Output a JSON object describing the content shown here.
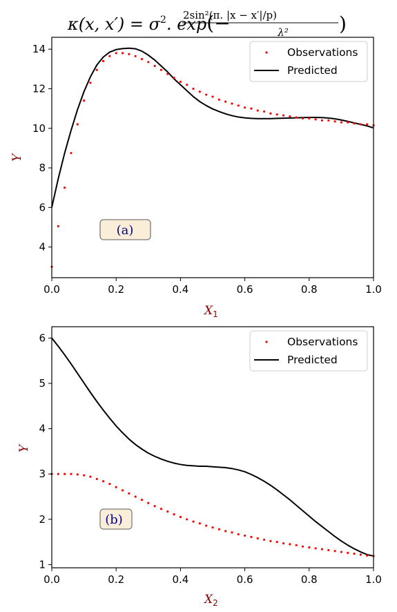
{
  "figure": {
    "title_parts": {
      "kappa": "κ",
      "args": "(x, x′) = σ",
      "sq": "2",
      "dot_exp": ". exp",
      "open": "(−",
      "numer": "2sin²(π. |x − x′|/p)",
      "denom": "λ²",
      "close": ")"
    }
  },
  "chart_data": [
    {
      "type": "line",
      "panel_label": "(a)",
      "xlabel": "X",
      "xlabel_sub": "1",
      "ylabel": "Y",
      "xlim": [
        0.0,
        1.0
      ],
      "ylim": [
        2.45,
        14.6
      ],
      "xticks": [
        0.0,
        0.2,
        0.4,
        0.6,
        0.8,
        1.0
      ],
      "xtick_labels": [
        "0.0",
        "0.2",
        "0.4",
        "0.6",
        "0.8",
        "1.0"
      ],
      "yticks": [
        4,
        6,
        8,
        10,
        12,
        14
      ],
      "ytick_labels": [
        "4",
        "6",
        "8",
        "10",
        "12",
        "14"
      ],
      "grid": false,
      "legend_position": "top-right",
      "series": [
        {
          "name": "Observations",
          "style": "dots",
          "color": "#ff0000",
          "x": [
            0.0,
            0.02,
            0.04,
            0.06,
            0.08,
            0.1,
            0.12,
            0.14,
            0.16,
            0.18,
            0.2,
            0.22,
            0.24,
            0.26,
            0.28,
            0.3,
            0.32,
            0.34,
            0.36,
            0.38,
            0.4,
            0.42,
            0.44,
            0.46,
            0.48,
            0.5,
            0.52,
            0.54,
            0.56,
            0.58,
            0.6,
            0.62,
            0.64,
            0.66,
            0.68,
            0.7,
            0.72,
            0.74,
            0.76,
            0.78,
            0.8,
            0.82,
            0.84,
            0.86,
            0.88,
            0.9,
            0.92,
            0.94,
            0.96,
            0.98,
            1.0
          ],
          "y": [
            3.0,
            5.05,
            7.0,
            8.75,
            10.2,
            11.4,
            12.3,
            12.95,
            13.4,
            13.65,
            13.8,
            13.8,
            13.75,
            13.65,
            13.5,
            13.35,
            13.15,
            12.95,
            12.75,
            12.55,
            12.35,
            12.2,
            12.0,
            11.85,
            11.7,
            11.6,
            11.45,
            11.35,
            11.25,
            11.15,
            11.05,
            11.0,
            10.9,
            10.85,
            10.75,
            10.7,
            10.65,
            10.6,
            10.55,
            10.5,
            10.5,
            10.45,
            10.4,
            10.4,
            10.35,
            10.3,
            10.3,
            10.25,
            10.2,
            10.2,
            10.15
          ]
        },
        {
          "name": "Predicted",
          "style": "line",
          "color": "#000000",
          "x": [
            0.0,
            0.02,
            0.04,
            0.06,
            0.08,
            0.1,
            0.12,
            0.14,
            0.16,
            0.18,
            0.2,
            0.22,
            0.24,
            0.26,
            0.28,
            0.3,
            0.32,
            0.34,
            0.36,
            0.38,
            0.4,
            0.42,
            0.44,
            0.46,
            0.48,
            0.5,
            0.52,
            0.54,
            0.56,
            0.58,
            0.6,
            0.62,
            0.64,
            0.66,
            0.68,
            0.7,
            0.72,
            0.74,
            0.76,
            0.78,
            0.8,
            0.82,
            0.84,
            0.86,
            0.88,
            0.9,
            0.92,
            0.94,
            0.96,
            0.98,
            1.0
          ],
          "y": [
            6.0,
            7.45,
            8.75,
            9.9,
            10.95,
            11.85,
            12.6,
            13.2,
            13.6,
            13.85,
            13.98,
            14.03,
            14.05,
            14.02,
            13.9,
            13.7,
            13.45,
            13.15,
            12.85,
            12.5,
            12.2,
            11.9,
            11.6,
            11.35,
            11.15,
            10.98,
            10.85,
            10.73,
            10.64,
            10.57,
            10.53,
            10.5,
            10.49,
            10.49,
            10.49,
            10.5,
            10.51,
            10.52,
            10.53,
            10.54,
            10.55,
            10.55,
            10.54,
            10.52,
            10.48,
            10.42,
            10.35,
            10.27,
            10.2,
            10.12,
            10.02
          ]
        }
      ]
    },
    {
      "type": "line",
      "panel_label": "(b)",
      "xlabel": "X",
      "xlabel_sub": "2",
      "ylabel": "Y",
      "xlim": [
        0.0,
        1.0
      ],
      "ylim": [
        0.93,
        6.25
      ],
      "xticks": [
        0.0,
        0.2,
        0.4,
        0.6,
        0.8,
        1.0
      ],
      "xtick_labels": [
        "0.0",
        "0.2",
        "0.4",
        "0.6",
        "0.8",
        "1.0"
      ],
      "yticks": [
        1,
        2,
        3,
        4,
        5,
        6
      ],
      "ytick_labels": [
        "1",
        "2",
        "3",
        "4",
        "5",
        "6"
      ],
      "grid": false,
      "legend_position": "top-right",
      "series": [
        {
          "name": "Observations",
          "style": "dots",
          "color": "#ff0000",
          "x": [
            0.0,
            0.02,
            0.04,
            0.06,
            0.08,
            0.1,
            0.12,
            0.14,
            0.16,
            0.18,
            0.2,
            0.22,
            0.24,
            0.26,
            0.28,
            0.3,
            0.32,
            0.34,
            0.36,
            0.38,
            0.4,
            0.42,
            0.44,
            0.46,
            0.48,
            0.5,
            0.52,
            0.54,
            0.56,
            0.58,
            0.6,
            0.62,
            0.64,
            0.66,
            0.68,
            0.7,
            0.72,
            0.74,
            0.76,
            0.78,
            0.8,
            0.82,
            0.84,
            0.86,
            0.88,
            0.9,
            0.92,
            0.94,
            0.96,
            0.98,
            1.0
          ],
          "y": [
            3.0,
            3.0,
            3.0,
            3.0,
            2.99,
            2.97,
            2.94,
            2.89,
            2.84,
            2.78,
            2.71,
            2.64,
            2.57,
            2.5,
            2.43,
            2.36,
            2.29,
            2.23,
            2.17,
            2.11,
            2.05,
            2.0,
            1.95,
            1.91,
            1.86,
            1.82,
            1.78,
            1.74,
            1.71,
            1.67,
            1.64,
            1.61,
            1.58,
            1.55,
            1.52,
            1.5,
            1.47,
            1.45,
            1.43,
            1.4,
            1.38,
            1.36,
            1.34,
            1.32,
            1.3,
            1.28,
            1.26,
            1.24,
            1.22,
            1.2,
            1.19
          ]
        },
        {
          "name": "Predicted",
          "style": "line",
          "color": "#000000",
          "x": [
            0.0,
            0.02,
            0.04,
            0.06,
            0.08,
            0.1,
            0.12,
            0.14,
            0.16,
            0.18,
            0.2,
            0.22,
            0.24,
            0.26,
            0.28,
            0.3,
            0.32,
            0.34,
            0.36,
            0.38,
            0.4,
            0.42,
            0.44,
            0.46,
            0.48,
            0.5,
            0.52,
            0.54,
            0.56,
            0.58,
            0.6,
            0.62,
            0.64,
            0.66,
            0.68,
            0.7,
            0.72,
            0.74,
            0.76,
            0.78,
            0.8,
            0.82,
            0.84,
            0.86,
            0.88,
            0.9,
            0.92,
            0.94,
            0.96,
            0.98,
            1.0
          ],
          "y": [
            6.0,
            5.82,
            5.63,
            5.43,
            5.22,
            5.01,
            4.8,
            4.6,
            4.41,
            4.23,
            4.06,
            3.91,
            3.77,
            3.65,
            3.55,
            3.46,
            3.39,
            3.33,
            3.28,
            3.24,
            3.21,
            3.19,
            3.18,
            3.17,
            3.17,
            3.16,
            3.15,
            3.14,
            3.12,
            3.09,
            3.05,
            2.99,
            2.92,
            2.84,
            2.75,
            2.65,
            2.54,
            2.43,
            2.31,
            2.19,
            2.07,
            1.95,
            1.84,
            1.73,
            1.62,
            1.52,
            1.43,
            1.35,
            1.28,
            1.22,
            1.19
          ]
        }
      ]
    }
  ]
}
